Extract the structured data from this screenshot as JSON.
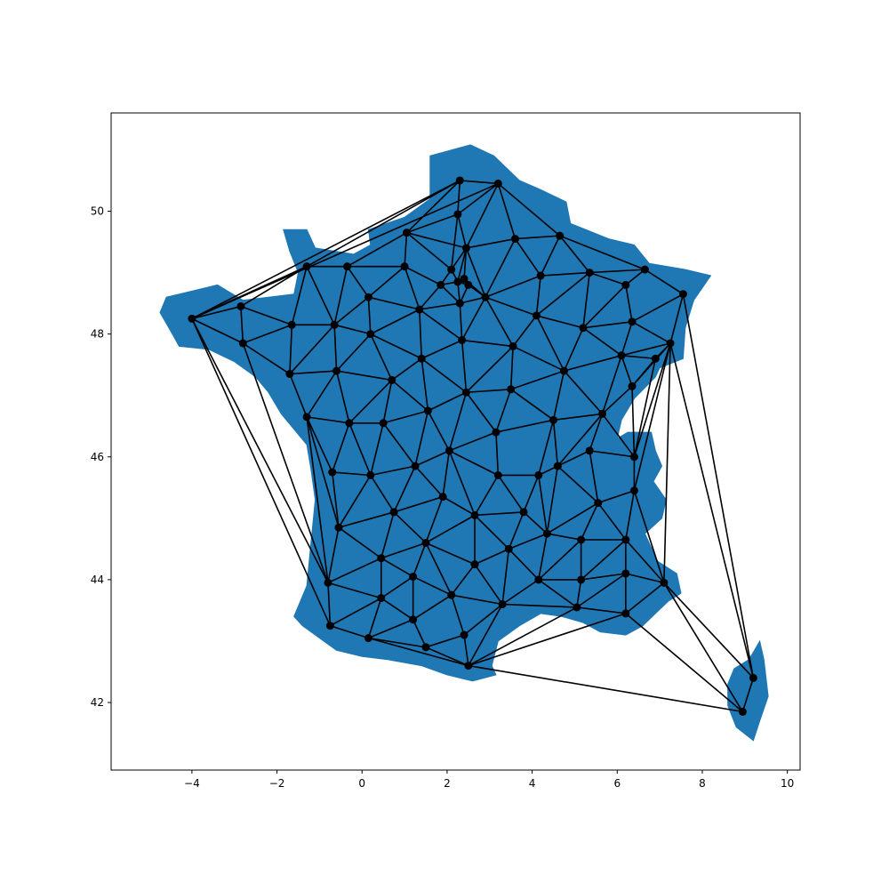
{
  "chart_data": {
    "type": "map",
    "title": "",
    "xlabel": "",
    "ylabel": "",
    "xlim": [
      -5.9,
      10.3
    ],
    "ylim": [
      40.9,
      51.6
    ],
    "x_ticks": [
      "−4",
      "−2",
      "0",
      "2",
      "4",
      "6",
      "8",
      "10"
    ],
    "x_tick_values": [
      -4,
      -2,
      0,
      2,
      4,
      6,
      8,
      10
    ],
    "y_ticks": [
      "42",
      "44",
      "46",
      "48",
      "50"
    ],
    "y_tick_values": [
      42,
      44,
      46,
      48,
      50
    ],
    "grid": false,
    "land_color": "#1f77b4",
    "edge_color": "#000000",
    "node_color": "#000000",
    "region": "France department centroids with Delaunay triangulation",
    "outline_mainland": [
      [
        2.55,
        51.08
      ],
      [
        3.1,
        50.9
      ],
      [
        3.7,
        50.5
      ],
      [
        4.2,
        50.35
      ],
      [
        4.8,
        50.15
      ],
      [
        4.9,
        49.8
      ],
      [
        5.8,
        49.55
      ],
      [
        6.4,
        49.45
      ],
      [
        6.75,
        49.15
      ],
      [
        7.6,
        49.05
      ],
      [
        8.2,
        48.95
      ],
      [
        7.8,
        48.55
      ],
      [
        7.6,
        48.1
      ],
      [
        7.55,
        47.6
      ],
      [
        7.0,
        47.45
      ],
      [
        6.9,
        47.3
      ],
      [
        6.4,
        46.95
      ],
      [
        6.1,
        46.6
      ],
      [
        6.0,
        46.3
      ],
      [
        6.25,
        46.4
      ],
      [
        6.8,
        46.4
      ],
      [
        6.9,
        46.1
      ],
      [
        7.05,
        45.85
      ],
      [
        6.85,
        45.6
      ],
      [
        7.15,
        45.3
      ],
      [
        7.05,
        45.0
      ],
      [
        6.65,
        44.75
      ],
      [
        6.95,
        44.3
      ],
      [
        7.4,
        44.1
      ],
      [
        7.5,
        43.78
      ],
      [
        7.2,
        43.65
      ],
      [
        6.9,
        43.45
      ],
      [
        6.6,
        43.25
      ],
      [
        6.2,
        43.1
      ],
      [
        5.6,
        43.15
      ],
      [
        5.2,
        43.3
      ],
      [
        4.7,
        43.4
      ],
      [
        4.2,
        43.45
      ],
      [
        3.7,
        43.25
      ],
      [
        3.2,
        43.0
      ],
      [
        3.05,
        42.6
      ],
      [
        3.15,
        42.45
      ],
      [
        2.6,
        42.35
      ],
      [
        2.0,
        42.45
      ],
      [
        1.4,
        42.6
      ],
      [
        0.6,
        42.7
      ],
      [
        0.0,
        42.75
      ],
      [
        -0.6,
        42.85
      ],
      [
        -1.4,
        43.25
      ],
      [
        -1.6,
        43.4
      ],
      [
        -1.3,
        43.9
      ],
      [
        -1.2,
        44.6
      ],
      [
        -1.1,
        45.3
      ],
      [
        -1.2,
        45.8
      ],
      [
        -1.3,
        46.2
      ],
      [
        -1.9,
        46.7
      ],
      [
        -2.2,
        47.05
      ],
      [
        -2.5,
        47.3
      ],
      [
        -3.0,
        47.55
      ],
      [
        -3.6,
        47.75
      ],
      [
        -4.3,
        47.8
      ],
      [
        -4.5,
        48.05
      ],
      [
        -4.75,
        48.35
      ],
      [
        -4.6,
        48.6
      ],
      [
        -4.0,
        48.7
      ],
      [
        -3.4,
        48.8
      ],
      [
        -2.8,
        48.55
      ],
      [
        -2.2,
        48.6
      ],
      [
        -1.6,
        48.65
      ],
      [
        -1.5,
        49.0
      ],
      [
        -1.7,
        49.35
      ],
      [
        -1.85,
        49.7
      ],
      [
        -1.3,
        49.7
      ],
      [
        -1.1,
        49.4
      ],
      [
        -0.2,
        49.3
      ],
      [
        0.2,
        49.45
      ],
      [
        0.15,
        49.7
      ],
      [
        1.0,
        49.9
      ],
      [
        1.6,
        50.2
      ],
      [
        1.6,
        50.9
      ],
      [
        2.55,
        51.08
      ]
    ],
    "outline_corsica": [
      [
        9.35,
        43.0
      ],
      [
        9.45,
        42.7
      ],
      [
        9.55,
        42.1
      ],
      [
        9.35,
        41.7
      ],
      [
        9.2,
        41.38
      ],
      [
        8.8,
        41.6
      ],
      [
        8.6,
        41.95
      ],
      [
        8.6,
        42.3
      ],
      [
        8.75,
        42.55
      ],
      [
        9.1,
        42.7
      ],
      [
        9.35,
        43.0
      ]
    ],
    "nodes": [
      [
        -4.0,
        48.25
      ],
      [
        -2.85,
        48.45
      ],
      [
        -2.8,
        47.85
      ],
      [
        -1.3,
        49.1
      ],
      [
        -0.35,
        49.1
      ],
      [
        1.0,
        49.1
      ],
      [
        1.05,
        49.65
      ],
      [
        -1.65,
        48.15
      ],
      [
        -0.65,
        48.15
      ],
      [
        0.15,
        48.6
      ],
      [
        0.2,
        48.0
      ],
      [
        -1.7,
        47.35
      ],
      [
        -0.6,
        47.4
      ],
      [
        0.7,
        47.25
      ],
      [
        -1.3,
        46.65
      ],
      [
        -0.3,
        46.55
      ],
      [
        0.5,
        46.55
      ],
      [
        -0.7,
        45.75
      ],
      [
        0.2,
        45.7
      ],
      [
        -0.55,
        44.85
      ],
      [
        0.75,
        45.1
      ],
      [
        -0.8,
        43.95
      ],
      [
        0.45,
        44.35
      ],
      [
        -0.75,
        43.25
      ],
      [
        0.45,
        43.7
      ],
      [
        1.2,
        44.05
      ],
      [
        0.15,
        43.05
      ],
      [
        1.2,
        43.35
      ],
      [
        1.5,
        42.9
      ],
      [
        2.1,
        43.75
      ],
      [
        2.4,
        43.1
      ],
      [
        2.5,
        42.6
      ],
      [
        1.5,
        44.6
      ],
      [
        1.9,
        45.35
      ],
      [
        1.25,
        45.85
      ],
      [
        1.55,
        46.75
      ],
      [
        1.4,
        47.6
      ],
      [
        1.35,
        48.4
      ],
      [
        2.3,
        50.5
      ],
      [
        3.2,
        50.45
      ],
      [
        2.25,
        49.95
      ],
      [
        2.45,
        49.4
      ],
      [
        2.1,
        49.05
      ],
      [
        1.85,
        48.8
      ],
      [
        2.25,
        48.85
      ],
      [
        2.4,
        48.9
      ],
      [
        2.5,
        48.8
      ],
      [
        2.3,
        48.5
      ],
      [
        2.9,
        48.6
      ],
      [
        2.35,
        47.9
      ],
      [
        2.45,
        47.05
      ],
      [
        2.05,
        46.1
      ],
      [
        3.15,
        46.4
      ],
      [
        3.2,
        45.7
      ],
      [
        3.5,
        47.1
      ],
      [
        3.55,
        47.8
      ],
      [
        3.6,
        49.55
      ],
      [
        4.65,
        49.6
      ],
      [
        4.2,
        48.95
      ],
      [
        4.1,
        48.3
      ],
      [
        5.35,
        49.0
      ],
      [
        6.65,
        49.05
      ],
      [
        6.2,
        48.8
      ],
      [
        5.2,
        48.1
      ],
      [
        6.35,
        48.2
      ],
      [
        7.55,
        48.65
      ],
      [
        7.25,
        47.85
      ],
      [
        6.1,
        47.65
      ],
      [
        6.9,
        47.6
      ],
      [
        6.35,
        47.15
      ],
      [
        4.75,
        47.4
      ],
      [
        4.5,
        46.6
      ],
      [
        5.65,
        46.7
      ],
      [
        4.6,
        45.85
      ],
      [
        5.35,
        46.1
      ],
      [
        6.4,
        46.0
      ],
      [
        6.4,
        45.45
      ],
      [
        5.55,
        45.25
      ],
      [
        4.15,
        45.7
      ],
      [
        3.8,
        45.1
      ],
      [
        2.65,
        45.05
      ],
      [
        3.45,
        44.5
      ],
      [
        2.65,
        44.25
      ],
      [
        4.35,
        44.75
      ],
      [
        5.15,
        44.65
      ],
      [
        6.2,
        44.65
      ],
      [
        4.15,
        44.0
      ],
      [
        5.15,
        44.0
      ],
      [
        6.2,
        44.1
      ],
      [
        7.1,
        43.95
      ],
      [
        3.3,
        43.6
      ],
      [
        5.05,
        43.55
      ],
      [
        6.2,
        43.45
      ],
      [
        9.2,
        42.4
      ],
      [
        8.95,
        41.85
      ]
    ],
    "edges": [
      [
        0,
        1
      ],
      [
        0,
        2
      ],
      [
        0,
        3
      ],
      [
        0,
        38
      ],
      [
        0,
        39
      ],
      [
        0,
        21
      ],
      [
        0,
        23
      ],
      [
        1,
        2
      ],
      [
        1,
        3
      ],
      [
        1,
        7
      ],
      [
        2,
        7
      ],
      [
        2,
        11
      ],
      [
        2,
        21
      ],
      [
        3,
        4
      ],
      [
        3,
        7
      ],
      [
        3,
        8
      ],
      [
        3,
        38
      ],
      [
        4,
        5
      ],
      [
        4,
        8
      ],
      [
        4,
        9
      ],
      [
        5,
        6
      ],
      [
        5,
        9
      ],
      [
        5,
        37
      ],
      [
        5,
        43
      ],
      [
        6,
        38
      ],
      [
        6,
        40
      ],
      [
        6,
        41
      ],
      [
        6,
        42
      ],
      [
        6,
        4
      ],
      [
        7,
        8
      ],
      [
        7,
        11
      ],
      [
        8,
        9
      ],
      [
        8,
        10
      ],
      [
        8,
        11
      ],
      [
        8,
        12
      ],
      [
        9,
        10
      ],
      [
        9,
        37
      ],
      [
        10,
        12
      ],
      [
        10,
        13
      ],
      [
        10,
        36
      ],
      [
        10,
        37
      ],
      [
        11,
        12
      ],
      [
        11,
        14
      ],
      [
        12,
        13
      ],
      [
        12,
        14
      ],
      [
        12,
        15
      ],
      [
        13,
        15
      ],
      [
        13,
        16
      ],
      [
        13,
        36
      ],
      [
        13,
        35
      ],
      [
        14,
        15
      ],
      [
        14,
        17
      ],
      [
        14,
        19
      ],
      [
        14,
        21
      ],
      [
        15,
        16
      ],
      [
        15,
        17
      ],
      [
        15,
        18
      ],
      [
        16,
        18
      ],
      [
        16,
        34
      ],
      [
        16,
        35
      ],
      [
        17,
        18
      ],
      [
        17,
        19
      ],
      [
        18,
        19
      ],
      [
        18,
        20
      ],
      [
        18,
        34
      ],
      [
        19,
        20
      ],
      [
        19,
        21
      ],
      [
        19,
        22
      ],
      [
        20,
        22
      ],
      [
        20,
        32
      ],
      [
        20,
        33
      ],
      [
        20,
        34
      ],
      [
        21,
        22
      ],
      [
        21,
        23
      ],
      [
        21,
        24
      ],
      [
        22,
        24
      ],
      [
        22,
        25
      ],
      [
        22,
        32
      ],
      [
        23,
        24
      ],
      [
        23,
        26
      ],
      [
        24,
        25
      ],
      [
        24,
        26
      ],
      [
        24,
        27
      ],
      [
        25,
        27
      ],
      [
        25,
        29
      ],
      [
        25,
        32
      ],
      [
        26,
        27
      ],
      [
        26,
        28
      ],
      [
        26,
        31
      ],
      [
        27,
        28
      ],
      [
        27,
        29
      ],
      [
        28,
        30
      ],
      [
        28,
        31
      ],
      [
        29,
        30
      ],
      [
        29,
        32
      ],
      [
        29,
        82
      ],
      [
        29,
        90
      ],
      [
        30,
        31
      ],
      [
        30,
        90
      ],
      [
        31,
        90
      ],
      [
        31,
        91
      ],
      [
        31,
        92
      ],
      [
        31,
        94
      ],
      [
        32,
        33
      ],
      [
        32,
        80
      ],
      [
        32,
        82
      ],
      [
        33,
        34
      ],
      [
        33,
        51
      ],
      [
        33,
        80
      ],
      [
        34,
        35
      ],
      [
        34,
        51
      ],
      [
        35,
        36
      ],
      [
        35,
        50
      ],
      [
        35,
        51
      ],
      [
        36,
        37
      ],
      [
        36,
        49
      ],
      [
        36,
        50
      ],
      [
        37,
        43
      ],
      [
        37,
        47
      ],
      [
        37,
        49
      ],
      [
        38,
        39
      ],
      [
        38,
        40
      ],
      [
        39,
        40
      ],
      [
        39,
        41
      ],
      [
        39,
        56
      ],
      [
        39,
        57
      ],
      [
        40,
        41
      ],
      [
        40,
        42
      ],
      [
        41,
        42
      ],
      [
        41,
        44
      ],
      [
        41,
        45
      ],
      [
        41,
        48
      ],
      [
        41,
        56
      ],
      [
        42,
        43
      ],
      [
        42,
        44
      ],
      [
        43,
        44
      ],
      [
        43,
        47
      ],
      [
        44,
        45
      ],
      [
        44,
        46
      ],
      [
        44,
        47
      ],
      [
        45,
        46
      ],
      [
        45,
        48
      ],
      [
        46,
        47
      ],
      [
        46,
        48
      ],
      [
        47,
        48
      ],
      [
        47,
        49
      ],
      [
        48,
        49
      ],
      [
        48,
        55
      ],
      [
        48,
        56
      ],
      [
        48,
        58
      ],
      [
        48,
        59
      ],
      [
        49,
        50
      ],
      [
        49,
        55
      ],
      [
        50,
        51
      ],
      [
        50,
        52
      ],
      [
        50,
        54
      ],
      [
        50,
        55
      ],
      [
        51,
        52
      ],
      [
        51,
        53
      ],
      [
        51,
        80
      ],
      [
        52,
        53
      ],
      [
        52,
        54
      ],
      [
        52,
        71
      ],
      [
        53,
        78
      ],
      [
        53,
        79
      ],
      [
        53,
        80
      ],
      [
        54,
        55
      ],
      [
        54,
        70
      ],
      [
        54,
        71
      ],
      [
        55,
        59
      ],
      [
        55,
        70
      ],
      [
        56,
        57
      ],
      [
        56,
        58
      ],
      [
        57,
        58
      ],
      [
        57,
        60
      ],
      [
        57,
        61
      ],
      [
        58,
        59
      ],
      [
        58,
        60
      ],
      [
        59,
        60
      ],
      [
        59,
        63
      ],
      [
        59,
        70
      ],
      [
        60,
        61
      ],
      [
        60,
        62
      ],
      [
        60,
        63
      ],
      [
        61,
        62
      ],
      [
        61,
        65
      ],
      [
        62,
        64
      ],
      [
        62,
        63
      ],
      [
        63,
        64
      ],
      [
        63,
        67
      ],
      [
        63,
        70
      ],
      [
        64,
        65
      ],
      [
        64,
        66
      ],
      [
        64,
        67
      ],
      [
        65,
        66
      ],
      [
        65,
        93
      ],
      [
        66,
        67
      ],
      [
        66,
        68
      ],
      [
        66,
        69
      ],
      [
        66,
        75
      ],
      [
        66,
        76
      ],
      [
        66,
        89
      ],
      [
        66,
        93
      ],
      [
        67,
        68
      ],
      [
        67,
        69
      ],
      [
        67,
        70
      ],
      [
        67,
        72
      ],
      [
        68,
        69
      ],
      [
        68,
        75
      ],
      [
        69,
        72
      ],
      [
        69,
        75
      ],
      [
        70,
        71
      ],
      [
        70,
        72
      ],
      [
        71,
        72
      ],
      [
        71,
        73
      ],
      [
        71,
        78
      ],
      [
        72,
        73
      ],
      [
        72,
        74
      ],
      [
        72,
        75
      ],
      [
        73,
        74
      ],
      [
        73,
        77
      ],
      [
        73,
        78
      ],
      [
        73,
        83
      ],
      [
        74,
        75
      ],
      [
        74,
        77
      ],
      [
        75,
        76
      ],
      [
        76,
        77
      ],
      [
        76,
        85
      ],
      [
        76,
        89
      ],
      [
        77,
        83
      ],
      [
        77,
        84
      ],
      [
        77,
        85
      ],
      [
        78,
        79
      ],
      [
        78,
        83
      ],
      [
        79,
        80
      ],
      [
        79,
        81
      ],
      [
        79,
        83
      ],
      [
        80,
        81
      ],
      [
        80,
        82
      ],
      [
        81,
        82
      ],
      [
        81,
        83
      ],
      [
        81,
        86
      ],
      [
        81,
        90
      ],
      [
        82,
        90
      ],
      [
        83,
        84
      ],
      [
        83,
        86
      ],
      [
        84,
        85
      ],
      [
        84,
        86
      ],
      [
        84,
        87
      ],
      [
        85,
        87
      ],
      [
        85,
        88
      ],
      [
        85,
        89
      ],
      [
        86,
        87
      ],
      [
        86,
        90
      ],
      [
        86,
        91
      ],
      [
        87,
        88
      ],
      [
        87,
        91
      ],
      [
        88,
        89
      ],
      [
        88,
        91
      ],
      [
        88,
        92
      ],
      [
        89,
        92
      ],
      [
        89,
        93
      ],
      [
        89,
        94
      ],
      [
        90,
        91
      ],
      [
        91,
        92
      ],
      [
        92,
        94
      ],
      [
        93,
        94
      ]
    ]
  }
}
